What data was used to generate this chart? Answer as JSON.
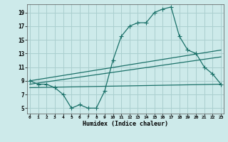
{
  "xlabel": "Humidex (Indice chaleur)",
  "bg_color": "#cdeaea",
  "grid_color": "#aacfcf",
  "line_color": "#1a7068",
  "x_ticks": [
    0,
    1,
    2,
    3,
    4,
    5,
    6,
    7,
    8,
    9,
    10,
    11,
    12,
    13,
    14,
    15,
    16,
    17,
    18,
    19,
    20,
    21,
    22,
    23
  ],
  "y_ticks": [
    5,
    7,
    9,
    11,
    13,
    15,
    17,
    19
  ],
  "xlim": [
    -0.3,
    23.3
  ],
  "ylim": [
    4.2,
    20.2
  ],
  "series1_x": [
    0,
    1,
    2,
    3,
    4,
    5,
    6,
    7,
    8,
    9,
    10,
    11,
    12,
    13,
    14,
    15,
    16,
    17,
    18,
    19,
    20,
    21,
    22,
    23
  ],
  "series1_y": [
    9.0,
    8.5,
    8.5,
    8.0,
    7.0,
    5.0,
    5.5,
    5.0,
    5.0,
    7.5,
    12.0,
    15.5,
    17.0,
    17.5,
    17.5,
    19.0,
    19.5,
    19.8,
    15.5,
    13.5,
    13.0,
    11.0,
    10.0,
    8.5
  ],
  "series2_x": [
    0,
    23
  ],
  "series2_y": [
    9.0,
    13.5
  ],
  "series3_x": [
    0,
    23
  ],
  "series3_y": [
    8.5,
    12.5
  ],
  "series4_x": [
    0,
    23
  ],
  "series4_y": [
    8.0,
    8.5
  ]
}
